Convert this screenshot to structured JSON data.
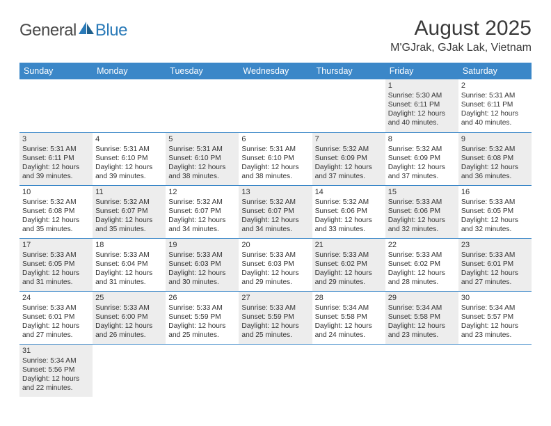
{
  "logo": {
    "dark": "General",
    "blue": "Blue"
  },
  "title": "August 2025",
  "location": "M'GJrak, GJak Lak, Vietnam",
  "colors": {
    "header_bg": "#3b87c8",
    "header_text": "#ffffff",
    "shade_bg": "#ededed",
    "rule": "#3b87c8",
    "text": "#333333",
    "logo_dark": "#4a4a4a",
    "logo_blue": "#2a7ab8"
  },
  "dayHeaders": [
    "Sunday",
    "Monday",
    "Tuesday",
    "Wednesday",
    "Thursday",
    "Friday",
    "Saturday"
  ],
  "weeks": [
    [
      {
        "empty": true
      },
      {
        "empty": true
      },
      {
        "empty": true
      },
      {
        "empty": true
      },
      {
        "empty": true
      },
      {
        "shade": true,
        "num": "1",
        "sunrise": "Sunrise: 5:30 AM",
        "sunset": "Sunset: 6:11 PM",
        "day1": "Daylight: 12 hours",
        "day2": "and 40 minutes."
      },
      {
        "shade": false,
        "num": "2",
        "sunrise": "Sunrise: 5:31 AM",
        "sunset": "Sunset: 6:11 PM",
        "day1": "Daylight: 12 hours",
        "day2": "and 40 minutes."
      }
    ],
    [
      {
        "shade": true,
        "num": "3",
        "sunrise": "Sunrise: 5:31 AM",
        "sunset": "Sunset: 6:11 PM",
        "day1": "Daylight: 12 hours",
        "day2": "and 39 minutes."
      },
      {
        "shade": false,
        "num": "4",
        "sunrise": "Sunrise: 5:31 AM",
        "sunset": "Sunset: 6:10 PM",
        "day1": "Daylight: 12 hours",
        "day2": "and 39 minutes."
      },
      {
        "shade": true,
        "num": "5",
        "sunrise": "Sunrise: 5:31 AM",
        "sunset": "Sunset: 6:10 PM",
        "day1": "Daylight: 12 hours",
        "day2": "and 38 minutes."
      },
      {
        "shade": false,
        "num": "6",
        "sunrise": "Sunrise: 5:31 AM",
        "sunset": "Sunset: 6:10 PM",
        "day1": "Daylight: 12 hours",
        "day2": "and 38 minutes."
      },
      {
        "shade": true,
        "num": "7",
        "sunrise": "Sunrise: 5:32 AM",
        "sunset": "Sunset: 6:09 PM",
        "day1": "Daylight: 12 hours",
        "day2": "and 37 minutes."
      },
      {
        "shade": false,
        "num": "8",
        "sunrise": "Sunrise: 5:32 AM",
        "sunset": "Sunset: 6:09 PM",
        "day1": "Daylight: 12 hours",
        "day2": "and 37 minutes."
      },
      {
        "shade": true,
        "num": "9",
        "sunrise": "Sunrise: 5:32 AM",
        "sunset": "Sunset: 6:08 PM",
        "day1": "Daylight: 12 hours",
        "day2": "and 36 minutes."
      }
    ],
    [
      {
        "shade": false,
        "num": "10",
        "sunrise": "Sunrise: 5:32 AM",
        "sunset": "Sunset: 6:08 PM",
        "day1": "Daylight: 12 hours",
        "day2": "and 35 minutes."
      },
      {
        "shade": true,
        "num": "11",
        "sunrise": "Sunrise: 5:32 AM",
        "sunset": "Sunset: 6:07 PM",
        "day1": "Daylight: 12 hours",
        "day2": "and 35 minutes."
      },
      {
        "shade": false,
        "num": "12",
        "sunrise": "Sunrise: 5:32 AM",
        "sunset": "Sunset: 6:07 PM",
        "day1": "Daylight: 12 hours",
        "day2": "and 34 minutes."
      },
      {
        "shade": true,
        "num": "13",
        "sunrise": "Sunrise: 5:32 AM",
        "sunset": "Sunset: 6:07 PM",
        "day1": "Daylight: 12 hours",
        "day2": "and 34 minutes."
      },
      {
        "shade": false,
        "num": "14",
        "sunrise": "Sunrise: 5:32 AM",
        "sunset": "Sunset: 6:06 PM",
        "day1": "Daylight: 12 hours",
        "day2": "and 33 minutes."
      },
      {
        "shade": true,
        "num": "15",
        "sunrise": "Sunrise: 5:33 AM",
        "sunset": "Sunset: 6:06 PM",
        "day1": "Daylight: 12 hours",
        "day2": "and 32 minutes."
      },
      {
        "shade": false,
        "num": "16",
        "sunrise": "Sunrise: 5:33 AM",
        "sunset": "Sunset: 6:05 PM",
        "day1": "Daylight: 12 hours",
        "day2": "and 32 minutes."
      }
    ],
    [
      {
        "shade": true,
        "num": "17",
        "sunrise": "Sunrise: 5:33 AM",
        "sunset": "Sunset: 6:05 PM",
        "day1": "Daylight: 12 hours",
        "day2": "and 31 minutes."
      },
      {
        "shade": false,
        "num": "18",
        "sunrise": "Sunrise: 5:33 AM",
        "sunset": "Sunset: 6:04 PM",
        "day1": "Daylight: 12 hours",
        "day2": "and 31 minutes."
      },
      {
        "shade": true,
        "num": "19",
        "sunrise": "Sunrise: 5:33 AM",
        "sunset": "Sunset: 6:03 PM",
        "day1": "Daylight: 12 hours",
        "day2": "and 30 minutes."
      },
      {
        "shade": false,
        "num": "20",
        "sunrise": "Sunrise: 5:33 AM",
        "sunset": "Sunset: 6:03 PM",
        "day1": "Daylight: 12 hours",
        "day2": "and 29 minutes."
      },
      {
        "shade": true,
        "num": "21",
        "sunrise": "Sunrise: 5:33 AM",
        "sunset": "Sunset: 6:02 PM",
        "day1": "Daylight: 12 hours",
        "day2": "and 29 minutes."
      },
      {
        "shade": false,
        "num": "22",
        "sunrise": "Sunrise: 5:33 AM",
        "sunset": "Sunset: 6:02 PM",
        "day1": "Daylight: 12 hours",
        "day2": "and 28 minutes."
      },
      {
        "shade": true,
        "num": "23",
        "sunrise": "Sunrise: 5:33 AM",
        "sunset": "Sunset: 6:01 PM",
        "day1": "Daylight: 12 hours",
        "day2": "and 27 minutes."
      }
    ],
    [
      {
        "shade": false,
        "num": "24",
        "sunrise": "Sunrise: 5:33 AM",
        "sunset": "Sunset: 6:01 PM",
        "day1": "Daylight: 12 hours",
        "day2": "and 27 minutes."
      },
      {
        "shade": true,
        "num": "25",
        "sunrise": "Sunrise: 5:33 AM",
        "sunset": "Sunset: 6:00 PM",
        "day1": "Daylight: 12 hours",
        "day2": "and 26 minutes."
      },
      {
        "shade": false,
        "num": "26",
        "sunrise": "Sunrise: 5:33 AM",
        "sunset": "Sunset: 5:59 PM",
        "day1": "Daylight: 12 hours",
        "day2": "and 25 minutes."
      },
      {
        "shade": true,
        "num": "27",
        "sunrise": "Sunrise: 5:33 AM",
        "sunset": "Sunset: 5:59 PM",
        "day1": "Daylight: 12 hours",
        "day2": "and 25 minutes."
      },
      {
        "shade": false,
        "num": "28",
        "sunrise": "Sunrise: 5:34 AM",
        "sunset": "Sunset: 5:58 PM",
        "day1": "Daylight: 12 hours",
        "day2": "and 24 minutes."
      },
      {
        "shade": true,
        "num": "29",
        "sunrise": "Sunrise: 5:34 AM",
        "sunset": "Sunset: 5:58 PM",
        "day1": "Daylight: 12 hours",
        "day2": "and 23 minutes."
      },
      {
        "shade": false,
        "num": "30",
        "sunrise": "Sunrise: 5:34 AM",
        "sunset": "Sunset: 5:57 PM",
        "day1": "Daylight: 12 hours",
        "day2": "and 23 minutes."
      }
    ],
    [
      {
        "shade": true,
        "num": "31",
        "sunrise": "Sunrise: 5:34 AM",
        "sunset": "Sunset: 5:56 PM",
        "day1": "Daylight: 12 hours",
        "day2": "and 22 minutes."
      },
      {
        "empty": true
      },
      {
        "empty": true
      },
      {
        "empty": true
      },
      {
        "empty": true
      },
      {
        "empty": true
      },
      {
        "empty": true
      }
    ]
  ]
}
